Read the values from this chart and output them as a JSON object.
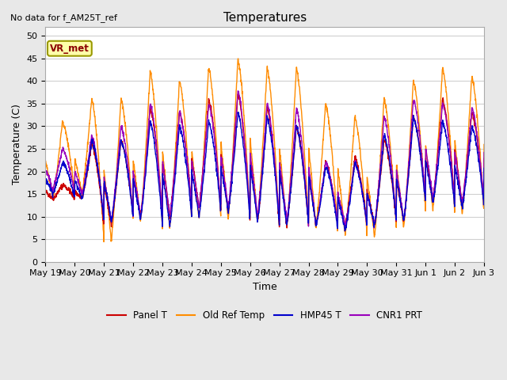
{
  "title": "Temperatures",
  "xlabel": "Time",
  "ylabel": "Temperature (C)",
  "top_left_text": "No data for f_AM25T_ref",
  "annotation_box": "VR_met",
  "ylim": [
    0,
    52
  ],
  "yticks": [
    0,
    5,
    10,
    15,
    20,
    25,
    30,
    35,
    40,
    45,
    50
  ],
  "x_labels": [
    "May 19",
    "May 20",
    "May 21",
    "May 22",
    "May 23",
    "May 24",
    "May 25",
    "May 26",
    "May 27",
    "May 28",
    "May 29",
    "May 30",
    "May 31",
    "Jun 1",
    "Jun 2",
    "Jun 3"
  ],
  "colors": {
    "panel_t": "#cc0000",
    "old_ref_temp": "#ff8c00",
    "hmp45_t": "#0000cc",
    "cnr1_prt": "#9900bb"
  },
  "legend_labels": [
    "Panel T",
    "Old Ref Temp",
    "HMP45 T",
    "CNR1 PRT"
  ],
  "plot_bg": "#ffffff",
  "fig_bg": "#e8e8e8",
  "grid_color": "#d0d0d0",
  "total_days": 15,
  "n_points": 2000,
  "day_peaks_orange": [
    31,
    36,
    36,
    42,
    40,
    43,
    45,
    43,
    43,
    35,
    32,
    36,
    40,
    43,
    41,
    31
  ],
  "day_mins_orange": [
    14,
    15,
    4.5,
    9,
    7.5,
    9.5,
    9.5,
    9,
    7.5,
    7.5,
    6,
    5.5,
    7.5,
    11.5,
    10.5,
    10.5
  ],
  "day_peaks_panel": [
    17,
    26,
    27,
    34,
    33,
    36,
    37,
    34,
    30,
    22,
    23,
    27,
    32,
    36,
    33,
    30
  ],
  "day_mins_panel": [
    14,
    14,
    8,
    10,
    10,
    12,
    11,
    9,
    8,
    8,
    8,
    8,
    9,
    14,
    13,
    13
  ],
  "day_peaks_hmp45": [
    22,
    27,
    27,
    31,
    30,
    31,
    33,
    32,
    30,
    21,
    22,
    28,
    32,
    31,
    30,
    30
  ],
  "day_mins_hmp45": [
    15,
    14,
    9,
    9.5,
    8,
    10,
    11,
    9,
    8,
    8,
    7,
    8,
    9,
    13,
    12,
    12
  ],
  "day_peaks_cnr1": [
    25,
    28,
    30,
    35,
    33,
    35,
    38,
    35,
    34,
    22,
    22,
    32,
    36,
    35,
    34,
    32
  ],
  "day_mins_cnr1": [
    16,
    15,
    9,
    10,
    10,
    12,
    12,
    10,
    9,
    8,
    8,
    8,
    9,
    14,
    13,
    13
  ]
}
